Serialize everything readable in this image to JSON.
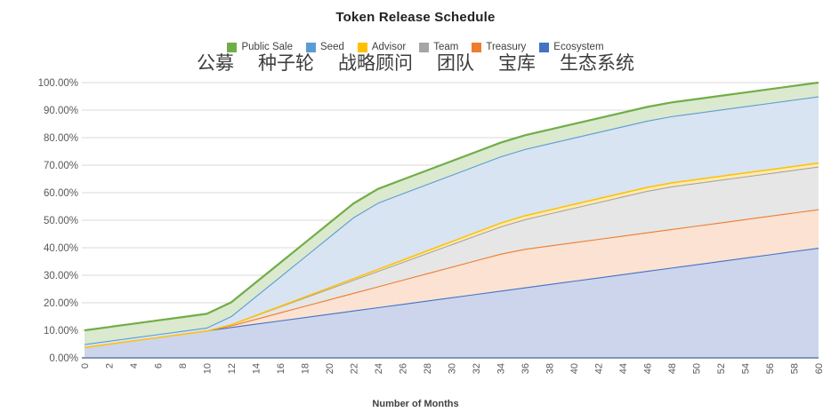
{
  "page": {
    "background": "#ffffff"
  },
  "chart_data": {
    "type": "area",
    "stacked": true,
    "title": "Token Release Schedule",
    "xlabel": "Number of Months",
    "ylabel": "",
    "ylim": [
      0,
      100
    ],
    "grid": true,
    "legend_position": "top",
    "y_tick_labels": [
      "0.00%",
      "10.00%",
      "20.00%",
      "30.00%",
      "40.00%",
      "50.00%",
      "60.00%",
      "70.00%",
      "80.00%",
      "90.00%",
      "100.00%"
    ],
    "x": [
      0,
      2,
      4,
      6,
      8,
      10,
      12,
      14,
      16,
      18,
      20,
      22,
      24,
      26,
      28,
      30,
      32,
      34,
      36,
      38,
      40,
      42,
      44,
      46,
      48,
      50,
      52,
      54,
      56,
      58,
      60
    ],
    "legend": [
      {
        "label": "Public Sale",
        "label_zh": "公募",
        "color": "#70ad47"
      },
      {
        "label": "Seed",
        "label_zh": "种子轮",
        "color": "#5b9bd5"
      },
      {
        "label": "Advisor",
        "label_zh": "战略顾问",
        "color": "#ffc000"
      },
      {
        "label": "Team",
        "label_zh": "团队",
        "color": "#a5a5a5"
      },
      {
        "label": "Treasury",
        "label_zh": "宝库",
        "color": "#ed7d31"
      },
      {
        "label": "Ecosystem",
        "label_zh": "生态系统",
        "color": "#4472c4"
      }
    ],
    "series": [
      {
        "name": "Ecosystem",
        "color": "#4472c4",
        "fill": "#ccd5ec",
        "line_width": 2.2,
        "values": [
          4,
          5.2,
          6.4,
          7.6,
          8.8,
          10,
          11.2,
          12.4,
          13.6,
          14.8,
          16,
          17.2,
          18.4,
          19.6,
          20.8,
          22,
          23.2,
          24.4,
          25.6,
          26.8,
          28,
          29.2,
          30.4,
          31.6,
          32.8,
          34,
          35.2,
          36.4,
          37.6,
          38.8,
          40
        ]
      },
      {
        "name": "Treasury",
        "color": "#ed7d31",
        "fill": "#fbe2d2",
        "line_width": 2.2,
        "values": [
          0,
          0,
          0,
          0,
          0,
          0,
          0.58,
          1.75,
          2.92,
          4.08,
          5.25,
          6.42,
          7.58,
          8.75,
          9.92,
          11.08,
          12.25,
          13.42,
          14,
          14,
          14,
          14,
          14,
          14,
          14,
          14,
          14,
          14,
          14,
          14,
          14
        ]
      },
      {
        "name": "Team",
        "color": "#a5a5a5",
        "fill": "#e6e6e6",
        "line_width": 2.2,
        "values": [
          0,
          0,
          0,
          0,
          0,
          0,
          0.43,
          1.29,
          2.15,
          3.01,
          3.88,
          4.74,
          5.6,
          6.46,
          7.32,
          8.18,
          9.04,
          9.9,
          10.76,
          11.63,
          12.49,
          13.35,
          14.21,
          15.07,
          15.5,
          15.5,
          15.5,
          15.5,
          15.5,
          15.5,
          15.5
        ]
      },
      {
        "name": "Advisor",
        "color": "#ffc000",
        "fill": "#ffeab0",
        "line_width": 3,
        "values": [
          0,
          0,
          0,
          0,
          0,
          0,
          0.06,
          0.19,
          0.31,
          0.44,
          0.56,
          0.69,
          0.81,
          0.94,
          1.06,
          1.19,
          1.31,
          1.44,
          1.5,
          1.5,
          1.5,
          1.5,
          1.5,
          1.5,
          1.5,
          1.5,
          1.5,
          1.5,
          1.5,
          1.5,
          1.5
        ]
      },
      {
        "name": "Seed",
        "color": "#5b9bd5",
        "fill": "#d8e4f1",
        "line_width": 2.2,
        "values": [
          1,
          1,
          1,
          1,
          1,
          1,
          2.92,
          6.75,
          10.58,
          14.42,
          18.25,
          22.08,
          24,
          24,
          24,
          24,
          24,
          24,
          24,
          24,
          24,
          24,
          24,
          24,
          24,
          24,
          24,
          24,
          24,
          24,
          24
        ]
      },
      {
        "name": "Public Sale",
        "color": "#70ad47",
        "fill": "#dbe9cf",
        "line_width": 2.2,
        "values": [
          5,
          5,
          5,
          5,
          5,
          5,
          5,
          5,
          5,
          5,
          5,
          5,
          5,
          5,
          5,
          5,
          5,
          5,
          5,
          5,
          5,
          5,
          5,
          5,
          5,
          5,
          5,
          5,
          5,
          5,
          5
        ]
      }
    ],
    "colors": {
      "gridline": "#d9d9d9",
      "axis_line": "#8496b0",
      "tick_label": "#595959"
    }
  }
}
